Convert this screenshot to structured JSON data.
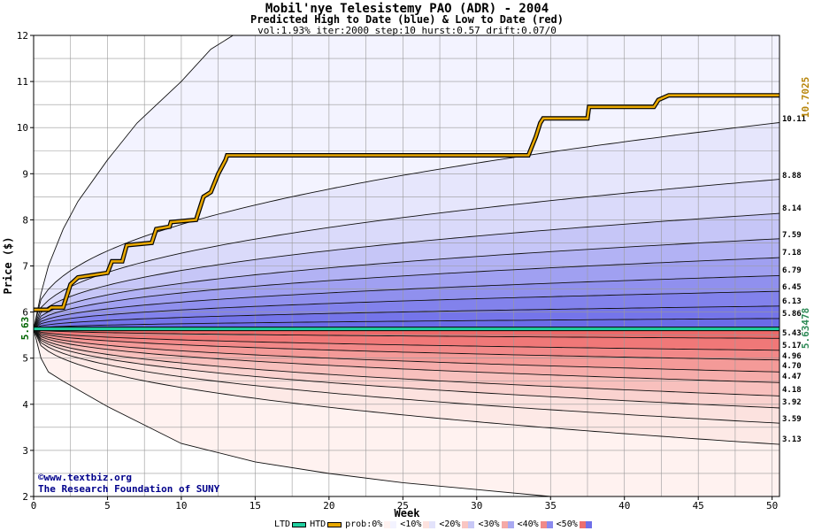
{
  "header": {
    "title": "Mobil'nye Telesistemy PAO (ADR) - 2004",
    "subtitle": "Predicted High to Date (blue) &  Low to Date (red)",
    "params": "vol:1.93% iter:2000 step:10 hurst:0.57 drift:0.07/0"
  },
  "credits": {
    "line1": "©www.textbiz.org",
    "line2": "The Research Foundation of SUNY"
  },
  "legend": {
    "ltd": "LTD",
    "htd": "HTD",
    "prob": "prob:0%",
    "p10": "<10%",
    "p20": "<20%",
    "p30": "<30%",
    "p40": "<40%",
    "p50": "<50%"
  },
  "colors": {
    "ltd_line": "#20d0a0",
    "htd_line": "#e8a800",
    "right_label_top": "#b8860b",
    "right_label_low": "#2e8b57",
    "start_label": "#006400"
  },
  "chart_data": {
    "type": "line",
    "xlabel": "Week",
    "ylabel": "Price ($)",
    "xlim": [
      0,
      50.5
    ],
    "ylim": [
      2,
      12
    ],
    "x_ticks": [
      0,
      5,
      10,
      15,
      20,
      25,
      30,
      35,
      40,
      45,
      50
    ],
    "y_ticks": [
      2,
      3,
      4,
      5,
      6,
      7,
      8,
      9,
      10,
      11,
      12
    ],
    "start_price_label": "5.63",
    "right_labels": {
      "htd_final": "10.7025",
      "ltd_final": "5.63478"
    },
    "quantile_end_labels": [
      "10.11",
      "8.88",
      "8.14",
      "7.59",
      "7.18",
      "6.79",
      "6.45",
      "6.13",
      "5.86",
      "5.43",
      "5.17",
      "4.96",
      "4.70",
      "4.47",
      "4.18",
      "3.92",
      "3.59",
      "3.13"
    ],
    "quantile_end_values": [
      10.11,
      8.88,
      8.14,
      7.59,
      7.18,
      6.79,
      6.45,
      6.13,
      5.86,
      5.43,
      5.17,
      4.96,
      4.7,
      4.47,
      4.18,
      3.92,
      3.59,
      3.13
    ],
    "outer_envelope": {
      "upper": [
        [
          0,
          5.63
        ],
        [
          0.5,
          6.4
        ],
        [
          1,
          7.0
        ],
        [
          2,
          7.8
        ],
        [
          3,
          8.4
        ],
        [
          5,
          9.3
        ],
        [
          7,
          10.1
        ],
        [
          10,
          11.0
        ],
        [
          12,
          11.7
        ],
        [
          13.5,
          12.0
        ]
      ],
      "lower": [
        [
          0,
          5.63
        ],
        [
          0.5,
          5.0
        ],
        [
          1,
          4.7
        ],
        [
          2,
          4.5
        ],
        [
          5,
          3.95
        ],
        [
          10,
          3.15
        ],
        [
          15,
          2.75
        ],
        [
          20,
          2.5
        ],
        [
          25,
          2.3
        ],
        [
          30,
          2.15
        ],
        [
          35,
          2.0
        ]
      ]
    },
    "htd_path": [
      [
        0,
        6.05
      ],
      [
        1,
        6.05
      ],
      [
        1.2,
        6.1
      ],
      [
        2,
        6.1
      ],
      [
        2.5,
        6.6
      ],
      [
        3,
        6.75
      ],
      [
        4,
        6.8
      ],
      [
        5,
        6.85
      ],
      [
        5.3,
        7.1
      ],
      [
        6,
        7.1
      ],
      [
        6.3,
        7.45
      ],
      [
        8,
        7.5
      ],
      [
        8.3,
        7.8
      ],
      [
        9.2,
        7.85
      ],
      [
        9.3,
        7.95
      ],
      [
        11,
        8.0
      ],
      [
        11.5,
        8.5
      ],
      [
        12,
        8.6
      ],
      [
        12.5,
        9.0
      ],
      [
        13,
        9.3
      ],
      [
        13.1,
        9.4
      ],
      [
        33.5,
        9.4
      ],
      [
        34,
        9.8
      ],
      [
        34.3,
        10.1
      ],
      [
        34.5,
        10.2
      ],
      [
        37.5,
        10.2
      ],
      [
        37.6,
        10.45
      ],
      [
        42,
        10.45
      ],
      [
        42.3,
        10.6
      ],
      [
        43,
        10.7
      ],
      [
        50.5,
        10.7
      ]
    ],
    "ltd_value": 5.63478,
    "series": [
      {
        "name": "HTD",
        "values": [
          6.05,
          6.75,
          7.1,
          7.5,
          7.95,
          9.4,
          9.4,
          10.2,
          10.45,
          10.7,
          10.7
        ]
      },
      {
        "name": "LTD",
        "values": [
          5.63,
          5.63,
          5.63,
          5.63,
          5.63,
          5.63,
          5.63,
          5.63,
          5.63,
          5.63,
          5.635
        ]
      }
    ]
  }
}
